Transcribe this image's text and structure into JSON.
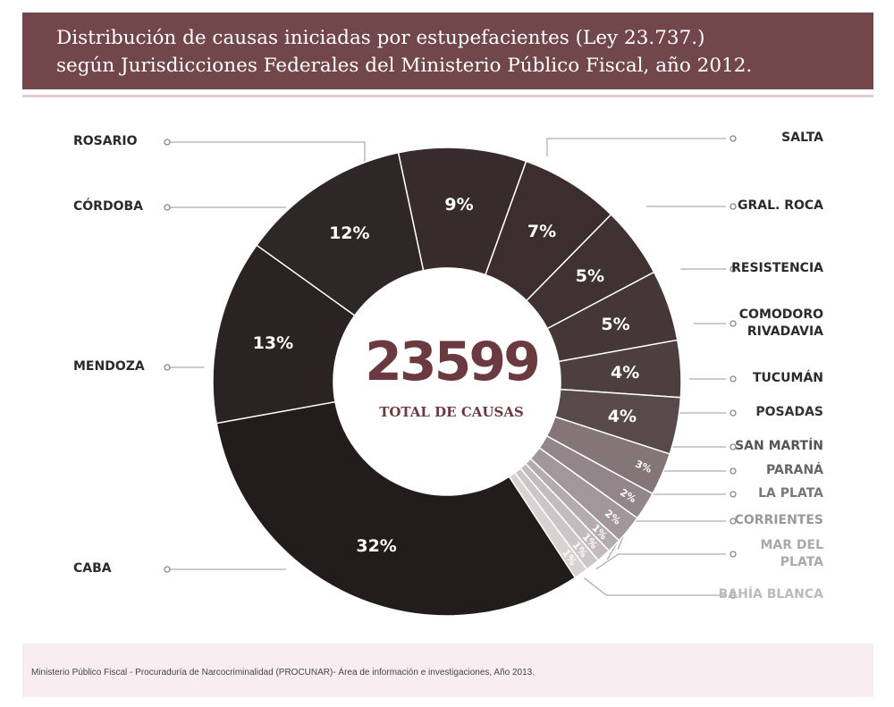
{
  "title_line1": "Distribución de causas iniciadas por estupefacientes (Ley 23.737.)",
  "title_line2": "según Jurisdicciones Federales del Ministerio Público Fiscal, año 2012.",
  "center_total": "23599",
  "center_label": "TOTAL DE CAUSAS",
  "footer": "Ministerio Público Fiscal - Procuraduría de Narcocriminalidad (PROCUNAR)- Área de información e investigaciones, Año 2013.",
  "chart_data": {
    "type": "pie",
    "total": 23599,
    "slices": [
      {
        "label": "ROSARIO",
        "percent": 9,
        "pct_text": "9%",
        "color": "#382b2d",
        "label_color": "#2b2b2b"
      },
      {
        "label": "SALTA",
        "percent": 7,
        "pct_text": "7%",
        "color": "#3c2d2f",
        "label_color": "#2b2b2b"
      },
      {
        "label": "GRAL. ROCA",
        "percent": 5,
        "pct_text": "5%",
        "color": "#403133",
        "label_color": "#2b2b2b"
      },
      {
        "label": "RESISTENCIA",
        "percent": 5,
        "pct_text": "5%",
        "color": "#453638",
        "label_color": "#2b2b2b"
      },
      {
        "label": "COMODORO\nRIVADAVIA",
        "percent": 4,
        "pct_text": "4%",
        "color": "#4d3e40",
        "label_color": "#2b2b2b"
      },
      {
        "label": "TUCUMÁN",
        "percent": 4,
        "pct_text": "4%",
        "color": "#584a4c",
        "label_color": "#2b2b2b"
      },
      {
        "label": "POSADAS",
        "percent": 3,
        "pct_text": "3%",
        "color": "#847577",
        "label_color": "#333333"
      },
      {
        "label": "SAN MARTÍN",
        "percent": 2,
        "pct_text": "2%",
        "color": "#93868a",
        "label_color": "#555555"
      },
      {
        "label": "PARANÁ",
        "percent": 2,
        "pct_text": "2%",
        "color": "#a2979a",
        "label_color": "#666666"
      },
      {
        "label": "LA PLATA",
        "percent": 1,
        "pct_text": "1%",
        "color": "#b4abad",
        "label_color": "#777777"
      },
      {
        "label": "CORRIENTES",
        "percent": 1,
        "pct_text": "1%",
        "color": "#c3bbbd",
        "label_color": "#999999"
      },
      {
        "label": "MAR DEL\nPLATA",
        "percent": 1,
        "pct_text": "1%",
        "color": "#cdc6c8",
        "label_color": "#aaaaaa"
      },
      {
        "label": "BAHÍA BLANCA",
        "percent": 1,
        "pct_text": "1%",
        "color": "#d8d2d3",
        "label_color": "#bbbbbb"
      },
      {
        "label": "CABA",
        "percent": 32,
        "pct_text": "32%",
        "color": "#231c1d",
        "label_color": "#2b2b2b"
      },
      {
        "label": "MENDOZA",
        "percent": 13,
        "pct_text": "13%",
        "color": "#2a2223",
        "label_color": "#2b2b2b"
      },
      {
        "label": "CÓRDOBA",
        "percent": 12,
        "pct_text": "12%",
        "color": "#2e2627",
        "label_color": "#2b2b2b"
      }
    ]
  }
}
